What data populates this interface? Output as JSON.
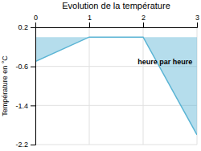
{
  "chart_data": {
    "type": "area",
    "title": "Evolution de la température",
    "y_label": "Température en °C",
    "annotations": [
      {
        "text": "heure par heure",
        "x": 1.9,
        "y": -0.45
      }
    ],
    "x": [
      0,
      1,
      2,
      3
    ],
    "values": [
      -0.5,
      0.0,
      0.0,
      -2.0
    ],
    "color": "#5ab4d4",
    "xlim": [
      0,
      3
    ],
    "ylim": [
      -2.2,
      0.2
    ],
    "xticks": [
      0,
      1,
      2,
      3
    ],
    "yticks": [
      0.2,
      -0.6,
      -1.4,
      -2.2
    ],
    "grid": true
  }
}
